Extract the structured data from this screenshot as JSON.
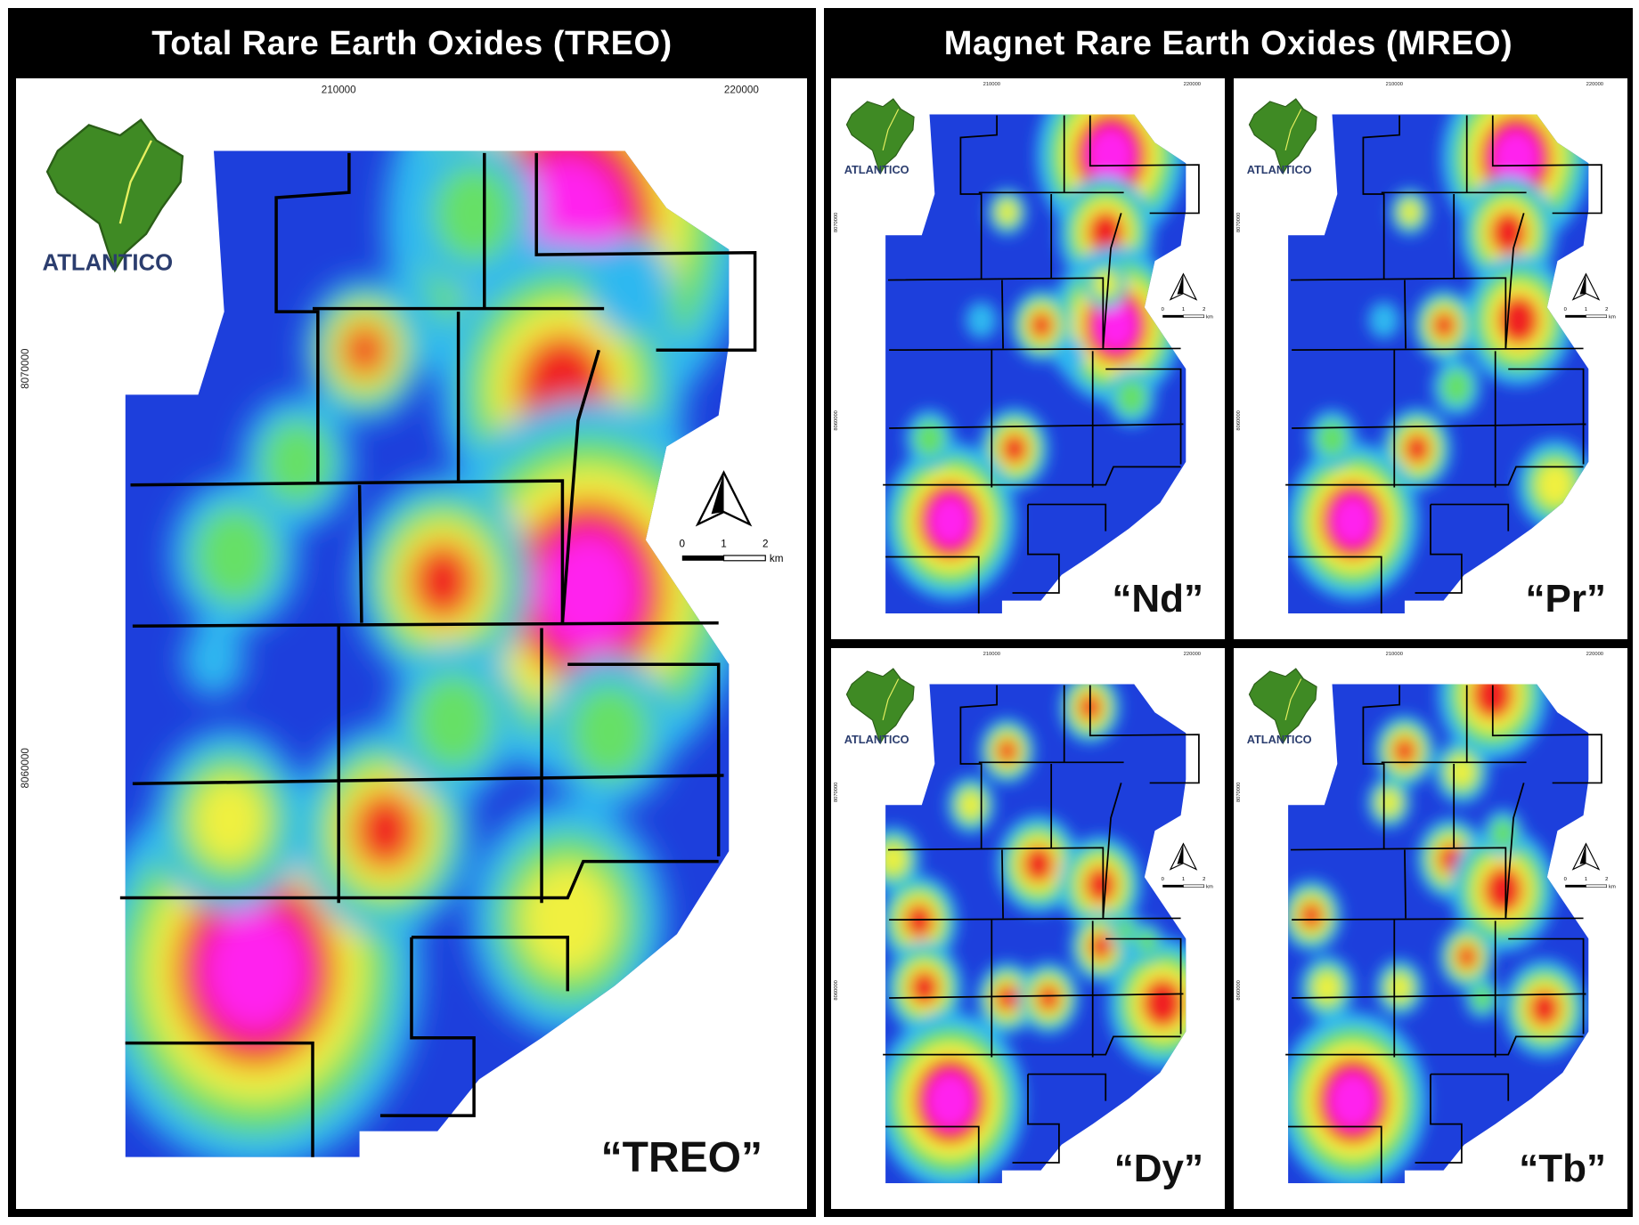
{
  "treo": {
    "title": "Total Rare Earth Oxides (TREO)",
    "map_label": "“TREO”"
  },
  "mreo": {
    "title": "Magnet Rare Earth Oxides (MREO)",
    "maps": [
      {
        "label": "“Nd”"
      },
      {
        "label": "“Pr”"
      },
      {
        "label": "“Dy”"
      },
      {
        "label": "“Tb”"
      }
    ]
  },
  "map_annotations": {
    "logo_text": "ATLANTICO",
    "x_ticks": [
      "210000",
      "220000"
    ],
    "y_ticks": [
      "8070000",
      "8060000"
    ],
    "scale_labels": [
      "0",
      "1",
      "2"
    ],
    "scale_unit": "km"
  }
}
